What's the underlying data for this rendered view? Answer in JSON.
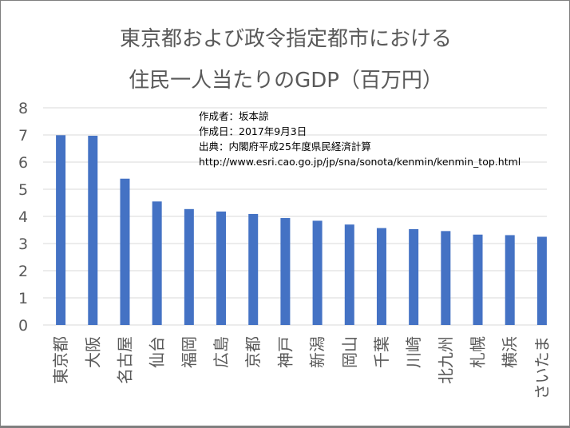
{
  "chart_data": {
    "type": "bar",
    "title": [
      "東京都および政令指定都市における",
      "住民一人当たりのGDP（百万円）"
    ],
    "categories": [
      "東京都",
      "大阪",
      "名古屋",
      "仙台",
      "福岡",
      "広島",
      "京都",
      "神戸",
      "新潟",
      "岡山",
      "千葉",
      "川崎",
      "北九州",
      "札幌",
      "横浜",
      "さいたま"
    ],
    "values": [
      6.99,
      6.97,
      5.39,
      4.55,
      4.27,
      4.18,
      4.09,
      3.94,
      3.84,
      3.7,
      3.57,
      3.53,
      3.46,
      3.33,
      3.31,
      3.25
    ],
    "ylim": [
      0,
      8
    ],
    "yticks": [
      "0",
      "1",
      "2",
      "3",
      "4",
      "5",
      "6",
      "7",
      "8"
    ],
    "grid": true,
    "bar_color": "#4472c4",
    "annotations": [
      "作成者：坂本諒",
      "作成日：2017年9月3日",
      "出典：内閣府平成25年度県民経済計算",
      "http://www.esri.cao.go.jp/jp/sna/sonota/kenmin/kenmin_top.html"
    ]
  }
}
